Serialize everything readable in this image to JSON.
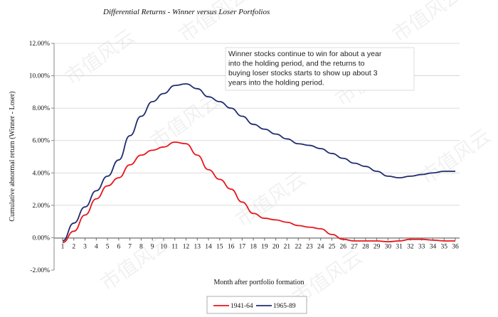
{
  "chart_data": {
    "type": "line",
    "title": "Differential Returns - Winner versus Loser Portfolios",
    "xlabel": "Month after portfolio formation",
    "ylabel": "Cumulative abnormal return (Winner - Loser)",
    "x": [
      1,
      2,
      3,
      4,
      5,
      6,
      7,
      8,
      9,
      10,
      11,
      12,
      13,
      14,
      15,
      16,
      17,
      18,
      19,
      20,
      21,
      22,
      23,
      24,
      25,
      26,
      27,
      28,
      29,
      30,
      31,
      32,
      33,
      34,
      35,
      36
    ],
    "ylim": [
      -0.02,
      0.12
    ],
    "yticks": [
      "-2.00%",
      "0.00%",
      "2.00%",
      "4.00%",
      "6.00%",
      "8.00%",
      "10.00%",
      "12.00%"
    ],
    "xticks": [
      "1",
      "2",
      "3",
      "4",
      "5",
      "6",
      "7",
      "8",
      "9",
      "10",
      "11",
      "12",
      "13",
      "14",
      "15",
      "16",
      "17",
      "18",
      "19",
      "20",
      "21",
      "22",
      "23",
      "24",
      "25",
      "26",
      "27",
      "28",
      "29",
      "30",
      "31",
      "32",
      "33",
      "34",
      "35",
      "36"
    ],
    "grid": "horizontal",
    "legend_position": "bottom",
    "series": [
      {
        "name": "1941-64",
        "color": "#e8141b",
        "values": [
          -0.003,
          0.004,
          0.014,
          0.024,
          0.032,
          0.037,
          0.045,
          0.051,
          0.054,
          0.056,
          0.059,
          0.058,
          0.051,
          0.042,
          0.036,
          0.03,
          0.022,
          0.015,
          0.012,
          0.011,
          0.0095,
          0.0075,
          0.0065,
          0.0055,
          0.002,
          -0.001,
          -0.002,
          -0.002,
          -0.002,
          -0.0025,
          -0.002,
          -0.001,
          -0.001,
          -0.0015,
          -0.002,
          -0.002
        ]
      },
      {
        "name": "1965-89",
        "color": "#1f2d6e",
        "values": [
          -0.002,
          0.009,
          0.019,
          0.029,
          0.038,
          0.048,
          0.063,
          0.075,
          0.084,
          0.089,
          0.094,
          0.095,
          0.092,
          0.087,
          0.084,
          0.08,
          0.075,
          0.07,
          0.067,
          0.064,
          0.061,
          0.058,
          0.057,
          0.055,
          0.052,
          0.049,
          0.046,
          0.044,
          0.041,
          0.038,
          0.037,
          0.038,
          0.039,
          0.04,
          0.041,
          0.041
        ]
      }
    ],
    "annotation": [
      "Winner stocks continue to win for about a year",
      "into the holding period, and the returns to",
      "buying loser stocks starts to show up about 3",
      "years into the holding period."
    ]
  },
  "watermark": "市值风云"
}
